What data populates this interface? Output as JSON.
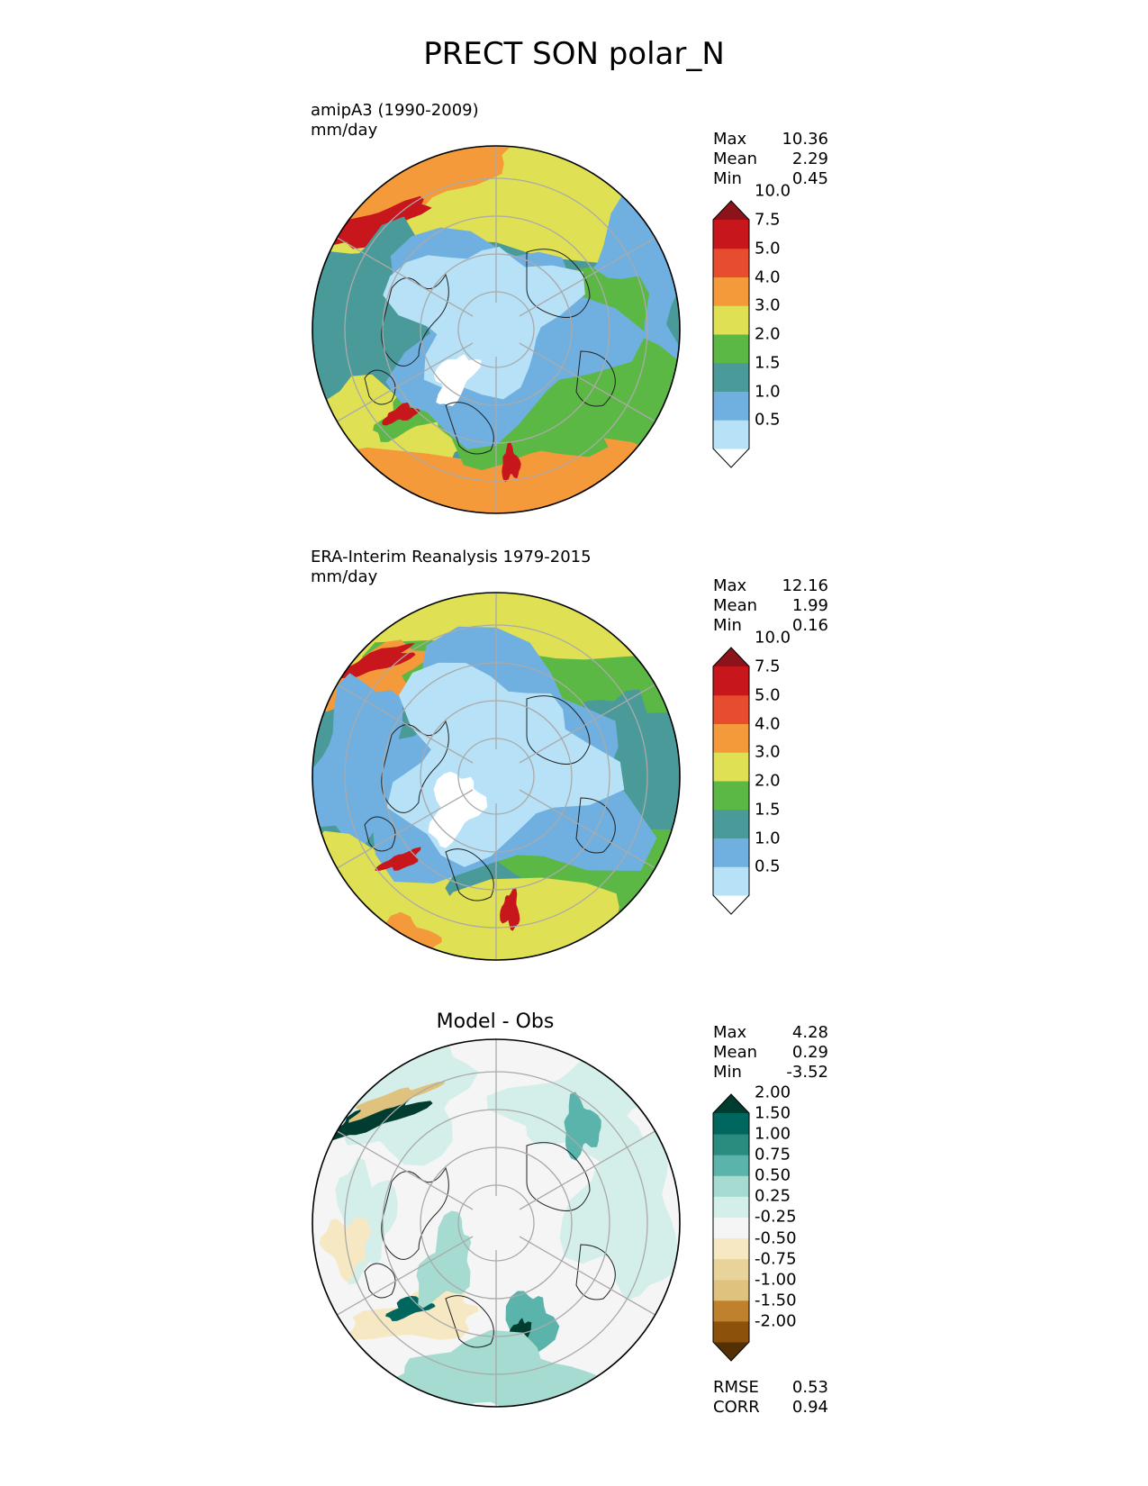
{
  "page": {
    "title": "PRECT SON polar_N"
  },
  "panels": [
    {
      "label_line1": "amipA3 (1990-2009)",
      "label_line2": "mm/day",
      "title": "",
      "stats": {
        "max_label": "Max",
        "max": "10.36",
        "mean_label": "Mean",
        "mean": "2.29",
        "min_label": "Min",
        "min": "0.45"
      },
      "colorbar": "precip"
    },
    {
      "label_line1": "ERA-Interim Reanalysis 1979-2015",
      "label_line2": "mm/day",
      "title": "",
      "stats": {
        "max_label": "Max",
        "max": "12.16",
        "mean_label": "Mean",
        "mean": "1.99",
        "min_label": "Min",
        "min": "0.16"
      },
      "colorbar": "precip"
    },
    {
      "label_line1": "",
      "label_line2": "",
      "title": "Model - Obs",
      "stats": {
        "max_label": "Max",
        "max": "4.28",
        "mean_label": "Mean",
        "mean": "0.29",
        "min_label": "Min",
        "min": "-3.52"
      },
      "colorbar": "diff",
      "metrics": {
        "rmse_label": "RMSE",
        "rmse": "0.53",
        "corr_label": "CORR",
        "corr": "0.94"
      }
    }
  ],
  "colorbars": {
    "precip": {
      "colors": [
        "#ffffff",
        "#b7e1f7",
        "#6fb0e0",
        "#4a9a9a",
        "#5cb845",
        "#dfe053",
        "#f59a3a",
        "#e84c2e",
        "#c8161d",
        "#8b1319"
      ],
      "labels": [
        "0.5",
        "1.0",
        "1.5",
        "2.0",
        "3.0",
        "4.0",
        "5.0",
        "7.5",
        "10.0"
      ]
    },
    "diff": {
      "colors": [
        "#543005",
        "#8c510a",
        "#bf812d",
        "#dfc27d",
        "#e8d39b",
        "#f6e8c3",
        "#f5f5f5",
        "#d4efea",
        "#a5dbd1",
        "#5ab4ac",
        "#2a8b7f",
        "#01665e",
        "#003c30"
      ],
      "labels": [
        "-2.00",
        "-1.50",
        "-1.00",
        "-0.75",
        "-0.50",
        "-0.25",
        "0.25",
        "0.50",
        "0.75",
        "1.00",
        "1.50",
        "2.00"
      ]
    }
  }
}
